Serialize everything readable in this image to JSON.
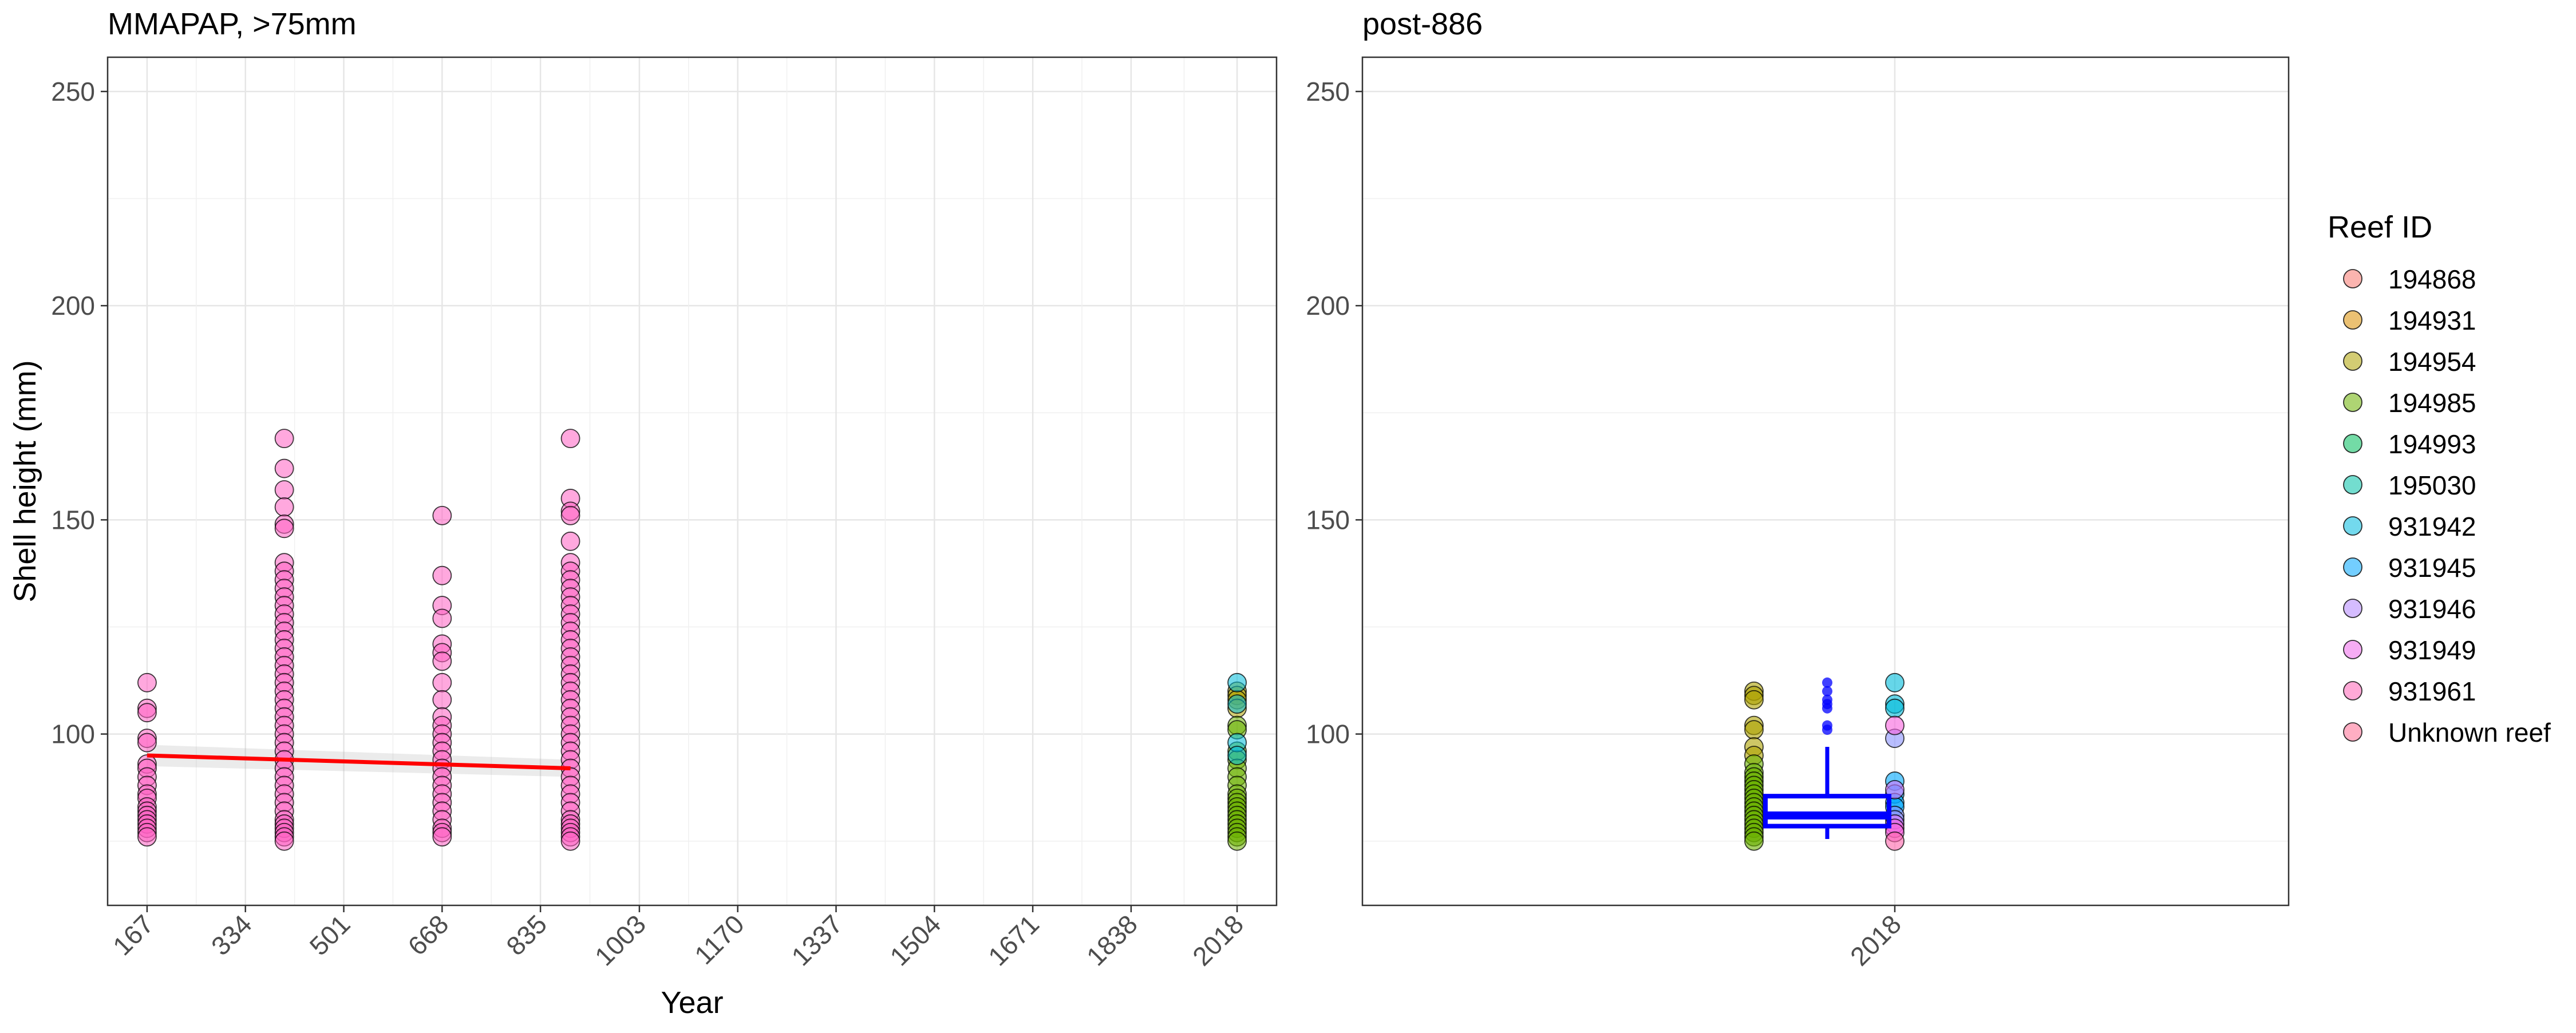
{
  "chart_data": [
    {
      "type": "scatter",
      "title": "MMAPAP, >75mm",
      "xlabel": "Year",
      "ylabel": "Shell height (mm)",
      "ylim": [
        60,
        258
      ],
      "y_ticks": [
        100,
        150,
        200,
        250
      ],
      "xlim": [
        100,
        2085
      ],
      "x_ticks": [
        167,
        334,
        501,
        668,
        835,
        1003,
        1170,
        1337,
        1504,
        1671,
        1838,
        2018
      ],
      "grid": true,
      "series": [
        {
          "name": "Unknown reef",
          "x_group": 167,
          "color": "#FF61C3",
          "values": [
            112,
            106,
            105,
            99,
            98,
            93,
            92,
            90,
            88,
            86,
            85,
            83,
            82,
            81,
            80,
            79,
            78,
            77,
            76
          ]
        },
        {
          "name": "Unknown reef",
          "x_group": 400,
          "color": "#FF61C3",
          "values": [
            169,
            162,
            157,
            153,
            149,
            148,
            140,
            138,
            136,
            134,
            132,
            130,
            128,
            126,
            124,
            122,
            120,
            118,
            116,
            114,
            112,
            110,
            108,
            106,
            104,
            102,
            100,
            98,
            96,
            94,
            92,
            90,
            88,
            86,
            84,
            82,
            80,
            79,
            78,
            77,
            76,
            75
          ]
        },
        {
          "name": "Unknown reef",
          "x_group": 668,
          "color": "#FF61C3",
          "values": [
            151,
            137,
            130,
            127,
            121,
            119,
            117,
            112,
            108,
            104,
            102,
            100,
            98,
            96,
            94,
            92,
            90,
            88,
            86,
            84,
            82,
            80,
            78,
            77,
            76
          ]
        },
        {
          "name": "Unknown reef",
          "x_group": 886,
          "color": "#FF61C3",
          "values": [
            169,
            155,
            152,
            151,
            145,
            140,
            138,
            136,
            134,
            132,
            130,
            128,
            126,
            124,
            122,
            120,
            118,
            116,
            114,
            112,
            110,
            108,
            106,
            104,
            102,
            100,
            98,
            96,
            94,
            92,
            90,
            88,
            86,
            84,
            82,
            80,
            79,
            78,
            77,
            76,
            75
          ]
        },
        {
          "name": "194954",
          "x_group": 2018,
          "color": "#AEA200",
          "values": [
            110,
            109,
            108,
            106
          ]
        },
        {
          "name": "194985",
          "x_group": 2018,
          "color": "#6BB100",
          "values": [
            102,
            101,
            96,
            94,
            92,
            90,
            88,
            86,
            85,
            84,
            83,
            82,
            81,
            80,
            79,
            78,
            77,
            76,
            75
          ]
        },
        {
          "name": "931942",
          "x_group": 2018,
          "color": "#00BBDA",
          "values": [
            112,
            107,
            98,
            95
          ]
        }
      ],
      "trend_line": {
        "x": [
          167,
          886
        ],
        "y": [
          95,
          92
        ],
        "color": "#FF0000"
      }
    },
    {
      "type": "scatter",
      "title": "post-886",
      "xlabel": "",
      "ylabel": "",
      "ylim": [
        60,
        258
      ],
      "y_ticks": [
        100,
        150,
        200,
        250
      ],
      "x_ticks": [
        "2018"
      ],
      "grid": true,
      "series": [
        {
          "name": "194954",
          "x_group": "2018-left",
          "color": "#AEA200",
          "values": [
            110,
            109,
            108,
            102,
            101,
            97,
            95
          ]
        },
        {
          "name": "194985",
          "x_group": "2018-left",
          "color": "#6BB100",
          "values": [
            93,
            91,
            90,
            89,
            88,
            87,
            86,
            85,
            84,
            83,
            82,
            81,
            80,
            79,
            78,
            77,
            76,
            75
          ]
        },
        {
          "name": "931942",
          "x_group": "2018",
          "color": "#00BBDA",
          "values": [
            112,
            107,
            106
          ]
        },
        {
          "name": "931945",
          "x_group": "2018",
          "color": "#00A9FF",
          "values": [
            89,
            86,
            84,
            83
          ]
        },
        {
          "name": "931946",
          "x_group": "2018",
          "color": "#8B93FF",
          "values": [
            99,
            81,
            80
          ]
        },
        {
          "name": "931949",
          "x_group": "2018",
          "color": "#D575FE",
          "values": [
            87,
            79
          ]
        },
        {
          "name": "931961",
          "x_group": "2018",
          "color": "#F962DD",
          "values": [
            102,
            78,
            77
          ]
        },
        {
          "name": "Unknown reef",
          "x_group": "2018",
          "color": "#FF65AC",
          "values": [
            75
          ]
        }
      ],
      "boxplot": {
        "color": "#0000FF",
        "whisker_low": 75.5,
        "q1": 78.5,
        "median": 81,
        "q3": 85.5,
        "whisker_high": 97,
        "outliers": [
          112,
          110,
          108,
          107,
          106,
          102,
          101
        ]
      }
    }
  ],
  "legend": {
    "title": "Reef ID",
    "position": "right",
    "items": [
      {
        "label": "194868",
        "color": "#F8766D"
      },
      {
        "label": "194931",
        "color": "#DB8E00"
      },
      {
        "label": "194954",
        "color": "#AEA200"
      },
      {
        "label": "194985",
        "color": "#6BB100"
      },
      {
        "label": "194993",
        "color": "#00BD5C"
      },
      {
        "label": "195030",
        "color": "#00C1A7"
      },
      {
        "label": "931942",
        "color": "#00BADE"
      },
      {
        "label": "931945",
        "color": "#00A6FF"
      },
      {
        "label": "931946",
        "color": "#B385FF"
      },
      {
        "label": "931949",
        "color": "#EF67EB"
      },
      {
        "label": "931961",
        "color": "#FF63B6"
      },
      {
        "label": "Unknown reef",
        "color": "#FF6C91"
      }
    ]
  }
}
